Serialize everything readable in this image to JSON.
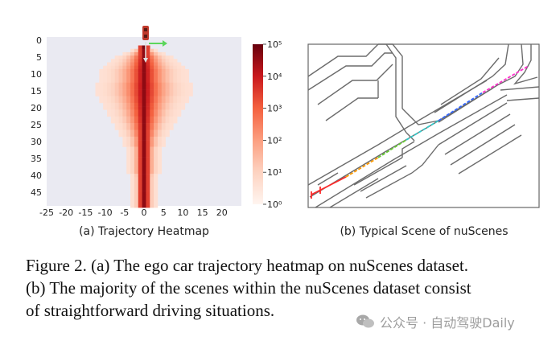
{
  "heatmap": {
    "subcaption": "(a) Trajectory Heatmap",
    "colors": {
      "background": "#eaeaf2",
      "low": "#fff5f0",
      "mid": "#fb6a4a",
      "high": "#67000d",
      "arrow_green": "#5cd65c",
      "car": "#c0392b"
    },
    "chart_data": {
      "type": "heatmap",
      "title": "",
      "x_ticks": [
        "-25",
        "-20",
        "-15",
        "-10",
        "-5",
        "0",
        "5",
        "10",
        "15",
        "20"
      ],
      "y_ticks": [
        "0",
        "5",
        "10",
        "15",
        "20",
        "25",
        "30",
        "35",
        "40",
        "45"
      ],
      "xlim": [
        -25,
        25
      ],
      "ylim": [
        0,
        49
      ],
      "colorbar": {
        "scale": "log",
        "ticks": [
          "10⁰",
          "10¹",
          "10²",
          "10³",
          "10⁴",
          "10⁵"
        ],
        "min_exp": 0,
        "max_exp": 5
      },
      "rows": [
        {
          "y": 2,
          "hw": 1,
          "c": 3.0
        },
        {
          "y": 3,
          "hw": 3,
          "c": 2.2
        },
        {
          "y": 4,
          "hw": 5,
          "c": 2.0
        },
        {
          "y": 5,
          "hw": 7,
          "c": 2.0
        },
        {
          "y": 6,
          "hw": 8,
          "c": 2.0
        },
        {
          "y": 7,
          "hw": 9,
          "c": 2.0
        },
        {
          "y": 8,
          "hw": 10,
          "c": 2.0
        },
        {
          "y": 9,
          "hw": 11,
          "c": 2.0
        },
        {
          "y": 10,
          "hw": 11,
          "c": 2.0
        },
        {
          "y": 11,
          "hw": 11,
          "c": 2.0
        },
        {
          "y": 12,
          "hw": 11,
          "c": 2.0
        },
        {
          "y": 13,
          "hw": 12,
          "c": 2.0
        },
        {
          "y": 14,
          "hw": 12,
          "c": 2.0
        },
        {
          "y": 15,
          "hw": 12,
          "c": 2.0
        },
        {
          "y": 16,
          "hw": 12,
          "c": 2.0
        },
        {
          "y": 17,
          "hw": 11,
          "c": 2.0
        },
        {
          "y": 18,
          "hw": 11,
          "c": 2.0
        },
        {
          "y": 19,
          "hw": 10,
          "c": 2.0
        },
        {
          "y": 20,
          "hw": 10,
          "c": 2.0
        },
        {
          "y": 21,
          "hw": 9,
          "c": 2.0
        },
        {
          "y": 22,
          "hw": 9,
          "c": 2.0
        },
        {
          "y": 23,
          "hw": 8,
          "c": 2.0
        },
        {
          "y": 24,
          "hw": 8,
          "c": 2.0
        },
        {
          "y": 25,
          "hw": 7,
          "c": 2.0
        },
        {
          "y": 26,
          "hw": 7,
          "c": 2.0
        },
        {
          "y": 27,
          "hw": 6,
          "c": 2.0
        },
        {
          "y": 28,
          "hw": 6,
          "c": 2.0
        },
        {
          "y": 29,
          "hw": 5,
          "c": 2.0
        },
        {
          "y": 30,
          "hw": 5,
          "c": 2.0
        },
        {
          "y": 31,
          "hw": 5,
          "c": 2.0
        },
        {
          "y": 32,
          "hw": 4,
          "c": 2.0
        },
        {
          "y": 33,
          "hw": 4,
          "c": 2.0
        },
        {
          "y": 34,
          "hw": 4,
          "c": 2.0
        },
        {
          "y": 35,
          "hw": 4,
          "c": 2.0
        },
        {
          "y": 36,
          "hw": 4,
          "c": 2.0
        },
        {
          "y": 37,
          "hw": 4,
          "c": 2.0
        },
        {
          "y": 38,
          "hw": 4,
          "c": 2.0
        },
        {
          "y": 39,
          "hw": 4,
          "c": 2.0
        },
        {
          "y": 40,
          "hw": 3,
          "c": 2.0
        },
        {
          "y": 41,
          "hw": 3,
          "c": 2.0
        },
        {
          "y": 42,
          "hw": 3,
          "c": 2.0
        },
        {
          "y": 43,
          "hw": 3,
          "c": 2.0
        },
        {
          "y": 44,
          "hw": 3,
          "c": 2.0
        },
        {
          "y": 45,
          "hw": 3,
          "c": 2.0
        },
        {
          "y": 46,
          "hw": 3,
          "c": 2.0
        },
        {
          "y": 47,
          "hw": 3,
          "c": 2.0
        },
        {
          "y": 48,
          "hw": 3,
          "c": 2.0
        },
        {
          "y": 49,
          "hw": 3,
          "c": 2.0
        }
      ],
      "center_value_exp": 4.6,
      "edge_value_exp": 0.6
    }
  },
  "scene": {
    "subcaption": "(b) Typical Scene of nuScenes",
    "colors": {
      "road": "#6b6b6b",
      "path_red": "#ff2a2a",
      "path_orange": "#ff9900",
      "path_green": "#66cc33",
      "path_cyan": "#33cccc",
      "path_blue": "#3366ff",
      "path_magenta": "#ff33cc"
    }
  },
  "caption": {
    "line1": "Figure 2. (a) The ego car trajectory heatmap on nuScenes dataset.",
    "line2": "(b) The majority of the scenes within the nuScenes dataset consist",
    "line3": "of straightforward driving situations."
  },
  "watermark": {
    "icon": "wechat-icon",
    "text": "公众号 · 自动驾驶Daily"
  }
}
